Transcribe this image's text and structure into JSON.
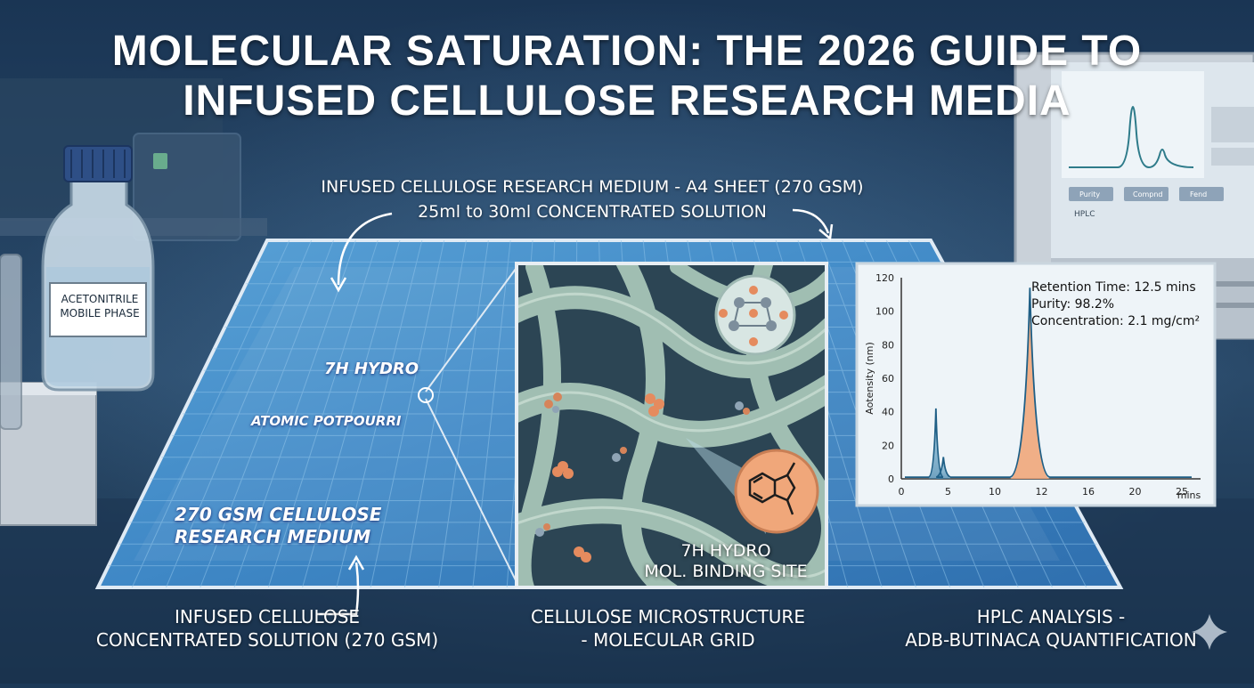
{
  "title": {
    "line1": "MOLECULAR SATURATION: THE 2026 GUIDE TO",
    "line2": "INFUSED CELLULOSE RESEARCH MEDIA"
  },
  "top_annotation": {
    "line1": "INFUSED CELLULOSE RESEARCH MEDIUM - A4 SHEET (270 GSM)",
    "line2": "25ml to 30ml CONCENTRATED SOLUTION"
  },
  "bottle": {
    "label_line1": "ACETONITRILE",
    "label_line2": "MOBILE PHASE"
  },
  "sheet_labels": {
    "hydro": "7H HYDRO",
    "potpourri": "ATOMIC POTPOURRI",
    "gsm_line1": "270 GSM CELLULOSE",
    "gsm_line2": "RESEARCH  MEDIUM"
  },
  "microstructure": {
    "site_line1": "7H HYDRO",
    "site_line2": "MOL. BINDING SITE"
  },
  "hplc": {
    "retention": "Retention Time: 12.5 mins",
    "purity": "Purity: 98.2%",
    "concentration": "Concentration: 2.1 mg/cm²"
  },
  "background_monitor": {
    "tab1": "Purity",
    "tab2": "Compnd",
    "tab3": "Fend",
    "brand": "HPLC"
  },
  "bottom_captions": {
    "left_line1": "INFUSED CELLULOSE",
    "left_line2": "CONCENTRATED SOLUTION  (270 GSM)",
    "center_line1": "CELLULOSE MICROSTRUCTURE",
    "center_line2": "- MOLECULAR GRID",
    "right_line1": "HPLC ANALYSIS -",
    "right_line2": "ADB-BUTINACA QUANTIFICATION"
  },
  "chart_data": {
    "type": "line",
    "ylabel": "Aotensity (nm)",
    "xlabel": "",
    "x_unit_label": "mins",
    "x_tick_labels": [
      "0",
      "5",
      "10",
      "12",
      "16",
      "20",
      "25"
    ],
    "y_tick_labels": [
      "0",
      "20",
      "40",
      "60",
      "80",
      "100",
      "120"
    ],
    "ylim": [
      0,
      120
    ],
    "series": [
      {
        "peaks": [
          {
            "tick_position": 3.7,
            "height": 42
          },
          {
            "tick_position": 4.5,
            "height": 13
          },
          {
            "tick_position": 11.5,
            "height": 114
          }
        ]
      }
    ],
    "highlight_color": "#f0a77a",
    "trace_color": "#1f5f86",
    "grid": false
  }
}
